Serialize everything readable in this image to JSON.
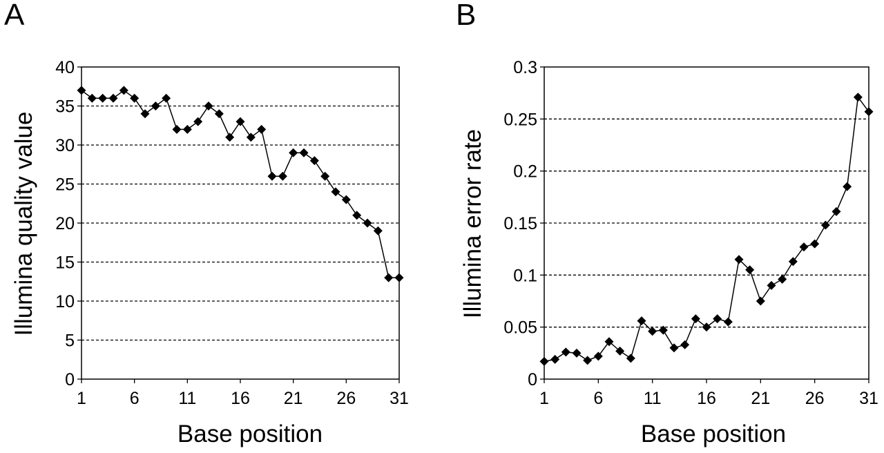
{
  "chart_data": [
    {
      "type": "line",
      "panel_label": "A",
      "xlabel": "Base position",
      "ylabel": "Illumina quality value",
      "xlim": [
        1,
        31
      ],
      "ylim": [
        0,
        40
      ],
      "xticks": [
        1,
        6,
        11,
        16,
        21,
        26,
        31
      ],
      "yticks": [
        0,
        5,
        10,
        15,
        20,
        25,
        30,
        35,
        40
      ],
      "ytick_labels": [
        "0",
        "5",
        "10",
        "15",
        "20",
        "25",
        "30",
        "35",
        "40"
      ],
      "grid": "horizontal-dashed",
      "marker": "diamond",
      "x": [
        1,
        2,
        3,
        4,
        5,
        6,
        7,
        8,
        9,
        10,
        11,
        12,
        13,
        14,
        15,
        16,
        17,
        18,
        19,
        20,
        21,
        22,
        23,
        24,
        25,
        26,
        27,
        28,
        29,
        30,
        31
      ],
      "y": [
        37,
        36,
        36,
        36,
        37,
        36,
        34,
        35,
        36,
        32,
        32,
        33,
        35,
        34,
        31,
        33,
        31,
        32,
        26,
        26,
        29,
        29,
        28,
        26,
        24,
        23,
        21,
        20,
        19,
        13,
        13
      ]
    },
    {
      "type": "line",
      "panel_label": "B",
      "xlabel": "Base position",
      "ylabel": "Illumina error rate",
      "xlim": [
        1,
        31
      ],
      "ylim": [
        0,
        0.3
      ],
      "xticks": [
        1,
        6,
        11,
        16,
        21,
        26,
        31
      ],
      "yticks": [
        0,
        0.05,
        0.1,
        0.15,
        0.2,
        0.25,
        0.3
      ],
      "ytick_labels": [
        "0",
        "0.05",
        "0.1",
        "0.15",
        "0.2",
        "0.25",
        "0.3"
      ],
      "grid": "horizontal-dashed",
      "marker": "diamond",
      "x": [
        1,
        2,
        3,
        4,
        5,
        6,
        7,
        8,
        9,
        10,
        11,
        12,
        13,
        14,
        15,
        16,
        17,
        18,
        19,
        20,
        21,
        22,
        23,
        24,
        25,
        26,
        27,
        28,
        29,
        30,
        31
      ],
      "y": [
        0.017,
        0.019,
        0.026,
        0.025,
        0.018,
        0.022,
        0.036,
        0.027,
        0.02,
        0.056,
        0.046,
        0.047,
        0.03,
        0.033,
        0.058,
        0.05,
        0.058,
        0.055,
        0.115,
        0.105,
        0.075,
        0.09,
        0.096,
        0.113,
        0.127,
        0.13,
        0.148,
        0.161,
        0.185,
        0.271,
        0.257
      ]
    }
  ]
}
